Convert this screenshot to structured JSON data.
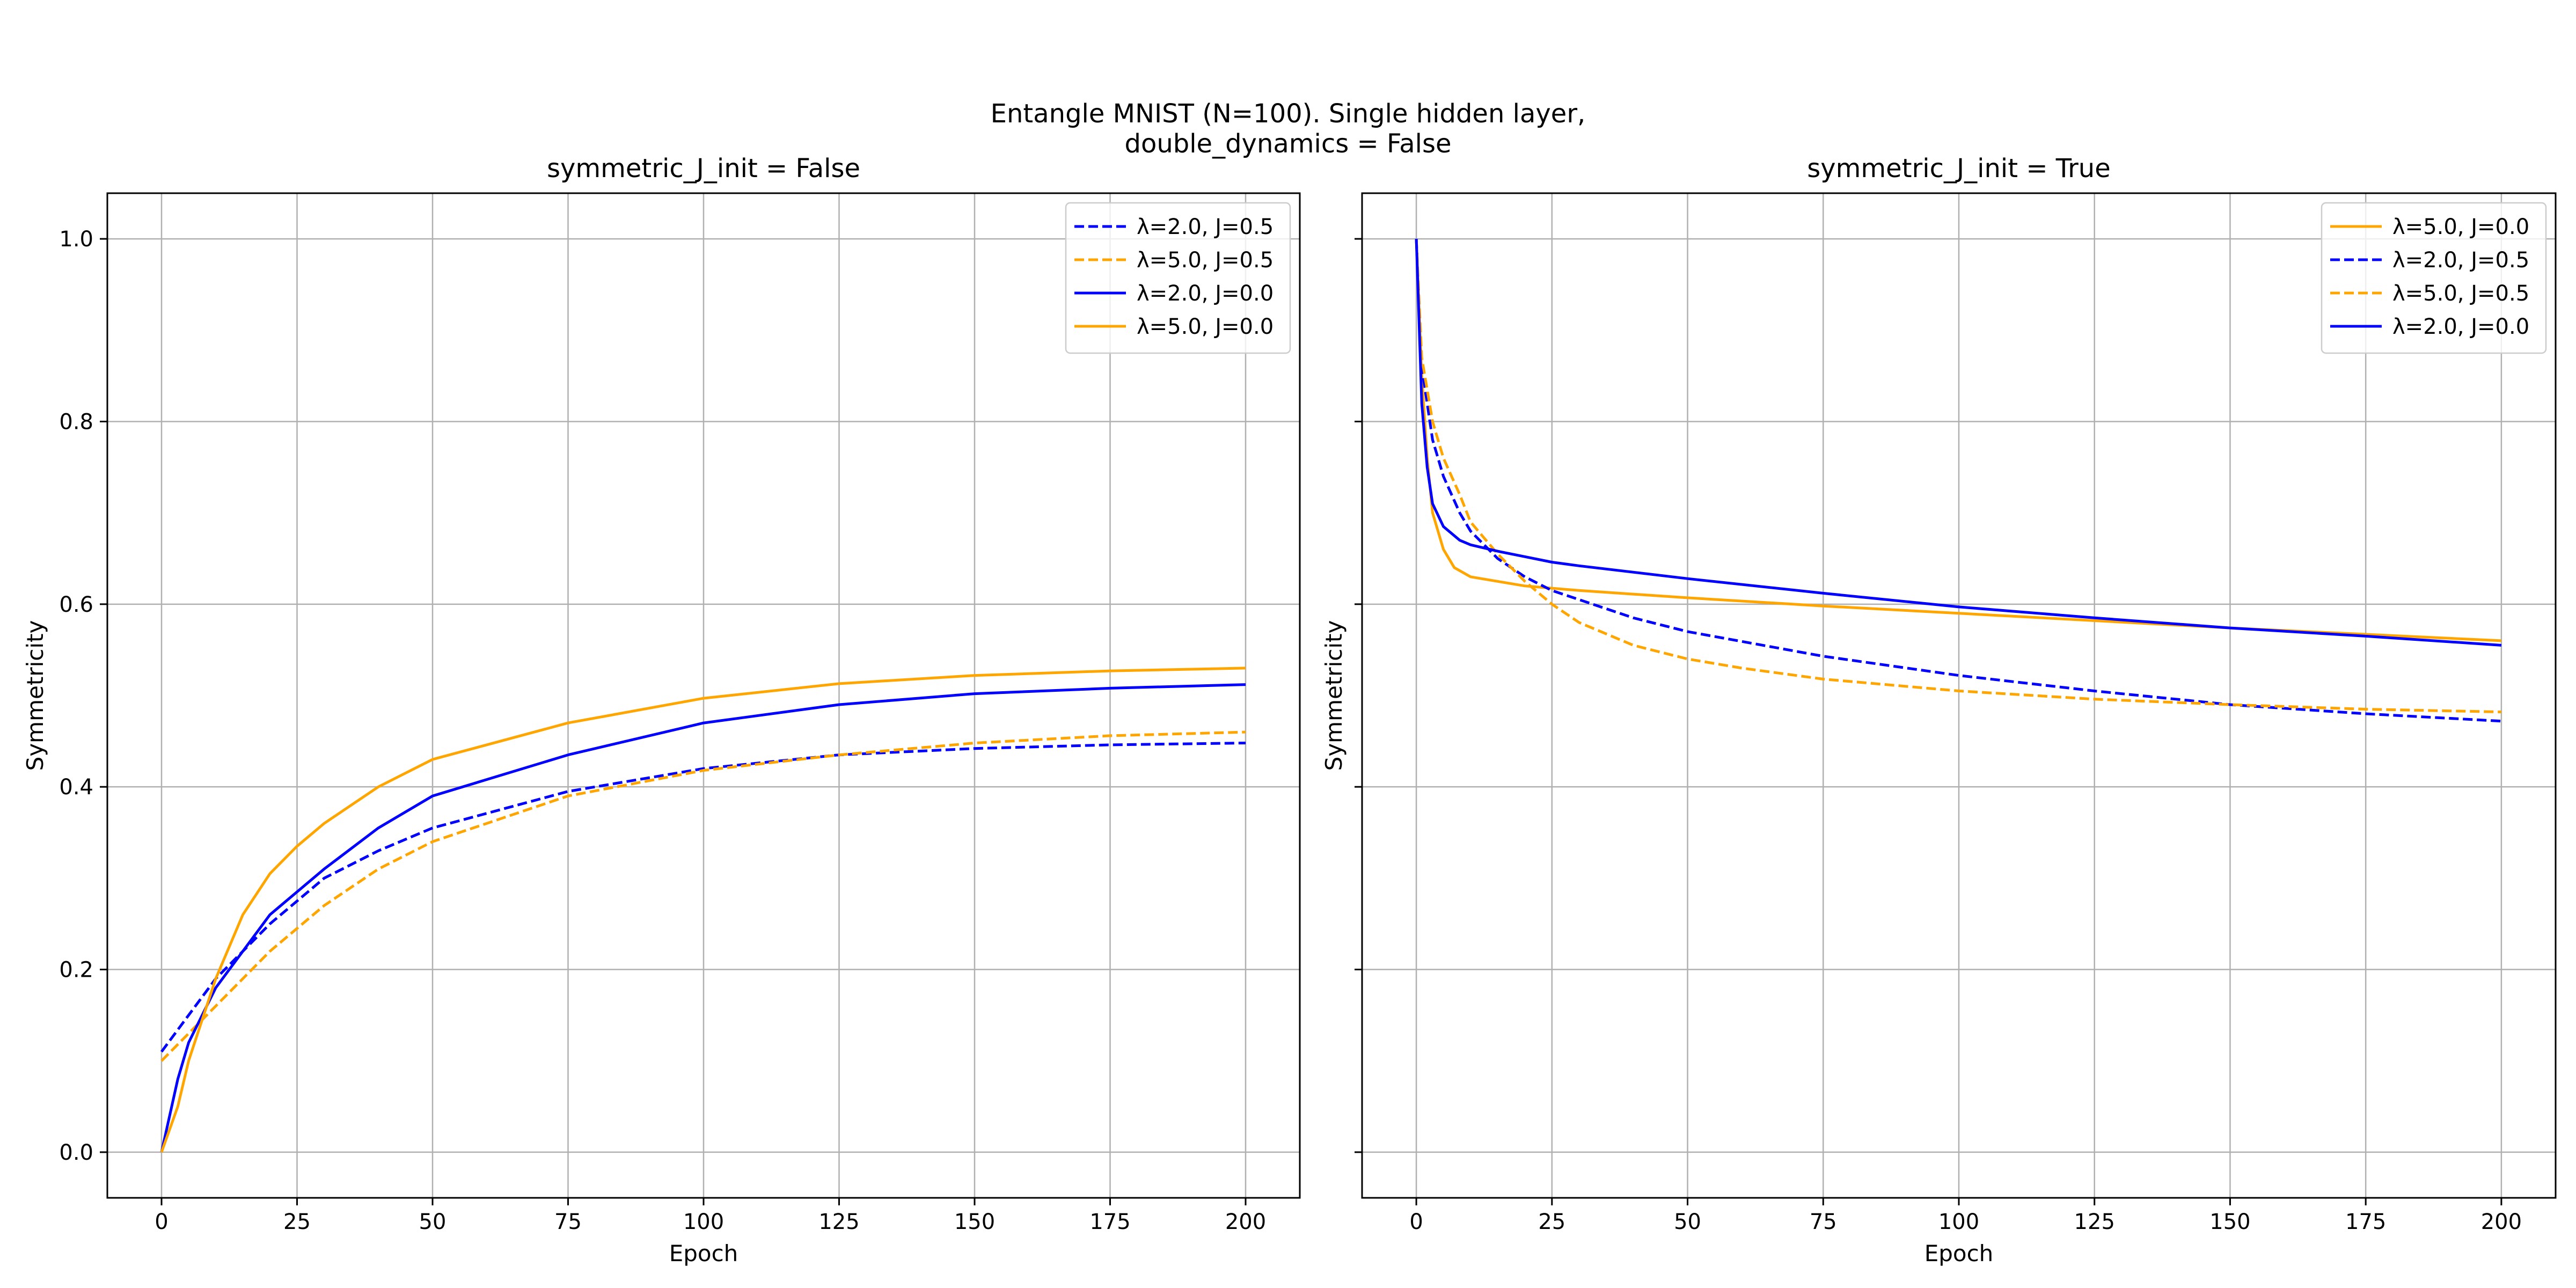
{
  "figure": {
    "suptitle_line1": "Entangle MNIST (N=100). Single hidden layer,",
    "suptitle_line2": "double_dynamics = False"
  },
  "chart_data": [
    {
      "type": "line",
      "title": "symmetric_J_init = False",
      "xlabel": "Epoch",
      "ylabel": "Symmetricity",
      "xlim": [
        -10,
        210
      ],
      "ylim": [
        -0.05,
        1.05
      ],
      "xticks": [
        0,
        25,
        50,
        75,
        100,
        125,
        150,
        175,
        200
      ],
      "yticks": [
        0.0,
        0.2,
        0.4,
        0.6,
        0.8,
        1.0
      ],
      "grid": true,
      "legend_position": "top-right",
      "series": [
        {
          "name": "λ=2.0, J=0.5",
          "color": "#0000ff",
          "dashed": true,
          "x": [
            0,
            5,
            10,
            20,
            30,
            40,
            50,
            75,
            100,
            125,
            150,
            175,
            200
          ],
          "y": [
            0.11,
            0.15,
            0.19,
            0.25,
            0.3,
            0.33,
            0.355,
            0.395,
            0.42,
            0.435,
            0.442,
            0.446,
            0.448
          ]
        },
        {
          "name": "λ=5.0, J=0.5",
          "color": "#ffa500",
          "dashed": true,
          "x": [
            0,
            5,
            10,
            20,
            30,
            40,
            50,
            75,
            100,
            125,
            150,
            175,
            200
          ],
          "y": [
            0.1,
            0.13,
            0.16,
            0.22,
            0.27,
            0.31,
            0.34,
            0.39,
            0.418,
            0.435,
            0.448,
            0.456,
            0.46
          ]
        },
        {
          "name": "λ=2.0, J=0.0",
          "color": "#0000ff",
          "dashed": false,
          "x": [
            0,
            3,
            5,
            10,
            20,
            30,
            40,
            50,
            75,
            100,
            125,
            150,
            175,
            200
          ],
          "y": [
            0.0,
            0.08,
            0.12,
            0.18,
            0.26,
            0.31,
            0.355,
            0.39,
            0.435,
            0.47,
            0.49,
            0.502,
            0.508,
            0.512
          ]
        },
        {
          "name": "λ=5.0, J=0.0",
          "color": "#ffa500",
          "dashed": false,
          "x": [
            0,
            3,
            5,
            10,
            15,
            20,
            25,
            30,
            40,
            50,
            75,
            100,
            125,
            150,
            175,
            200
          ],
          "y": [
            0.0,
            0.05,
            0.1,
            0.19,
            0.26,
            0.305,
            0.335,
            0.36,
            0.4,
            0.43,
            0.47,
            0.497,
            0.513,
            0.522,
            0.527,
            0.53
          ]
        }
      ]
    },
    {
      "type": "line",
      "title": "symmetric_J_init = True",
      "xlabel": "Epoch",
      "ylabel": "Symmetricity",
      "xlim": [
        -10,
        210
      ],
      "ylim": [
        -0.05,
        1.05
      ],
      "xticks": [
        0,
        25,
        50,
        75,
        100,
        125,
        150,
        175,
        200
      ],
      "yticks": [
        0.0,
        0.2,
        0.4,
        0.6,
        0.8,
        1.0
      ],
      "grid": true,
      "legend_position": "top-right",
      "series": [
        {
          "name": "λ=5.0, J=0.0",
          "color": "#ffa500",
          "dashed": false,
          "x": [
            0,
            1,
            2,
            3,
            5,
            7,
            10,
            15,
            20,
            30,
            50,
            75,
            100,
            125,
            150,
            175,
            200
          ],
          "y": [
            1.0,
            0.85,
            0.76,
            0.7,
            0.66,
            0.64,
            0.63,
            0.625,
            0.62,
            0.615,
            0.607,
            0.598,
            0.59,
            0.582,
            0.574,
            0.567,
            0.56
          ]
        },
        {
          "name": "λ=2.0, J=0.5",
          "color": "#0000ff",
          "dashed": true,
          "x": [
            0,
            1,
            3,
            5,
            8,
            10,
            15,
            20,
            25,
            30,
            40,
            50,
            75,
            100,
            125,
            150,
            175,
            200
          ],
          "y": [
            1.0,
            0.86,
            0.78,
            0.74,
            0.7,
            0.68,
            0.65,
            0.63,
            0.615,
            0.605,
            0.585,
            0.57,
            0.543,
            0.522,
            0.505,
            0.49,
            0.48,
            0.472
          ]
        },
        {
          "name": "λ=5.0, J=0.5",
          "color": "#ffa500",
          "dashed": true,
          "x": [
            0,
            1,
            3,
            5,
            8,
            10,
            15,
            20,
            25,
            30,
            40,
            50,
            60,
            75,
            100,
            125,
            150,
            175,
            200
          ],
          "y": [
            1.0,
            0.87,
            0.8,
            0.76,
            0.72,
            0.69,
            0.655,
            0.625,
            0.6,
            0.58,
            0.555,
            0.54,
            0.53,
            0.518,
            0.505,
            0.496,
            0.49,
            0.485,
            0.482
          ]
        },
        {
          "name": "λ=2.0, J=0.0",
          "color": "#0000ff",
          "dashed": false,
          "x": [
            0,
            1,
            2,
            3,
            5,
            8,
            10,
            15,
            20,
            25,
            30,
            50,
            75,
            100,
            125,
            150,
            175,
            200
          ],
          "y": [
            1.0,
            0.82,
            0.75,
            0.71,
            0.685,
            0.67,
            0.665,
            0.658,
            0.652,
            0.646,
            0.642,
            0.628,
            0.612,
            0.597,
            0.585,
            0.574,
            0.565,
            0.555
          ]
        }
      ]
    }
  ]
}
